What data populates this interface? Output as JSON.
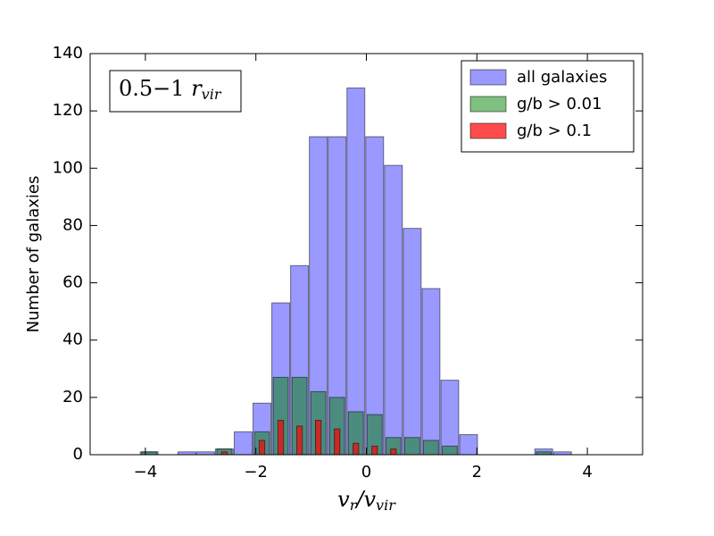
{
  "chart_data": {
    "type": "histogram",
    "ylabel": "Number of galaxies",
    "xlabel": [
      {
        "text": "v"
      },
      {
        "text": "r",
        "sub": true
      },
      {
        "text": "/v"
      },
      {
        "text": "vir",
        "sub": true
      }
    ],
    "annotation": [
      {
        "text": "0.5−1  "
      },
      {
        "text": "r"
      },
      {
        "text": "vir",
        "sub": true
      }
    ],
    "bins": [
      -4.1,
      -3.76,
      -3.42,
      -3.08,
      -2.74,
      -2.4,
      -2.06,
      -1.72,
      -1.38,
      -1.04,
      -0.7,
      -0.36,
      -0.02,
      0.32,
      0.66,
      1.0,
      1.34,
      1.68,
      2.02,
      2.36,
      2.7,
      3.04,
      3.38,
      3.72
    ],
    "series": [
      {
        "name": "all galaxies",
        "color": "#0000ff",
        "values": [
          1,
          0,
          1,
          1,
          2,
          8,
          18,
          53,
          66,
          111,
          111,
          128,
          111,
          101,
          79,
          58,
          26,
          7,
          0,
          0,
          0,
          2,
          1
        ]
      },
      {
        "name": "g/b > 0.01",
        "color": "#008000",
        "values": [
          1,
          0,
          0,
          0,
          2,
          0,
          8,
          27,
          27,
          22,
          20,
          15,
          14,
          6,
          6,
          5,
          3,
          0,
          0,
          0,
          0,
          1,
          0
        ]
      },
      {
        "name": "g/b > 0.1",
        "color": "#ff0000",
        "values": [
          0,
          0,
          0,
          0,
          1,
          0,
          5,
          12,
          10,
          12,
          9,
          4,
          3,
          2,
          0,
          0,
          0,
          0,
          0,
          0,
          0,
          0,
          0
        ]
      }
    ],
    "xlim": [
      -5,
      5
    ],
    "ylim": [
      0,
      140
    ],
    "xticks": [
      {
        "value": -4,
        "label": "−4"
      },
      {
        "value": -2,
        "label": "−2"
      },
      0,
      2,
      4
    ],
    "yticks": [
      0,
      20,
      40,
      60,
      80,
      100,
      120,
      140
    ],
    "legend": "upper right"
  }
}
